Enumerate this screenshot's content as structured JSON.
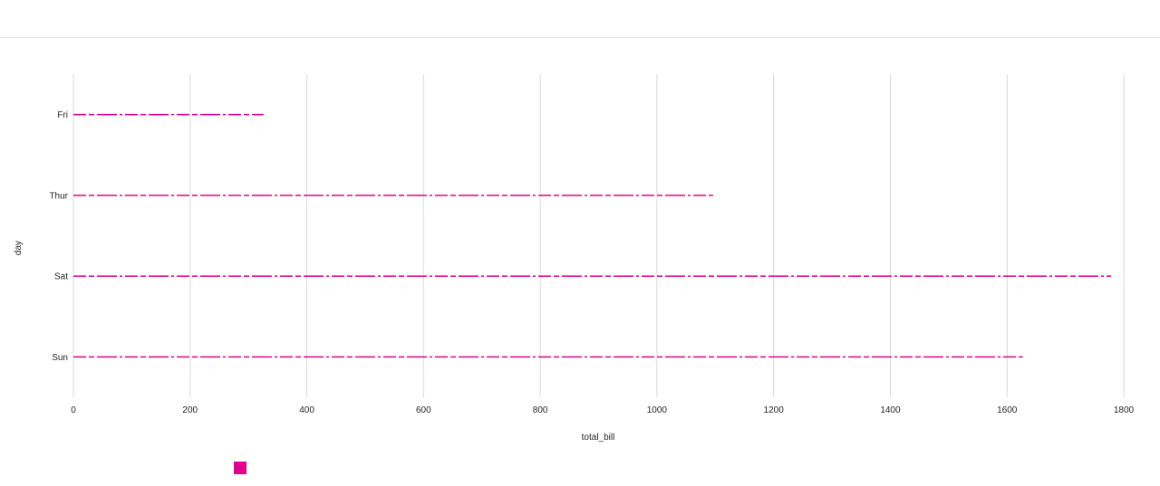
{
  "chart_data": {
    "type": "bar",
    "orientation": "horizontal",
    "categories": [
      "Fri",
      "Thur",
      "Sat",
      "Sun"
    ],
    "series": [
      {
        "values": [
          325.88,
          1096.33,
          1778.4,
          1627.16
        ]
      }
    ],
    "xlabel": "total_bill",
    "ylabel": "day",
    "xlim": [
      0,
      1800
    ],
    "xticks": [
      "0",
      "200",
      "400",
      "600",
      "800",
      "1000",
      "1200",
      "1400",
      "1600",
      "1800"
    ],
    "grid": "vertical",
    "legend_position": "bottom-left",
    "colors": {
      "series": "#e3008c",
      "grid": "#d9d9d9",
      "text": "#252423"
    }
  }
}
